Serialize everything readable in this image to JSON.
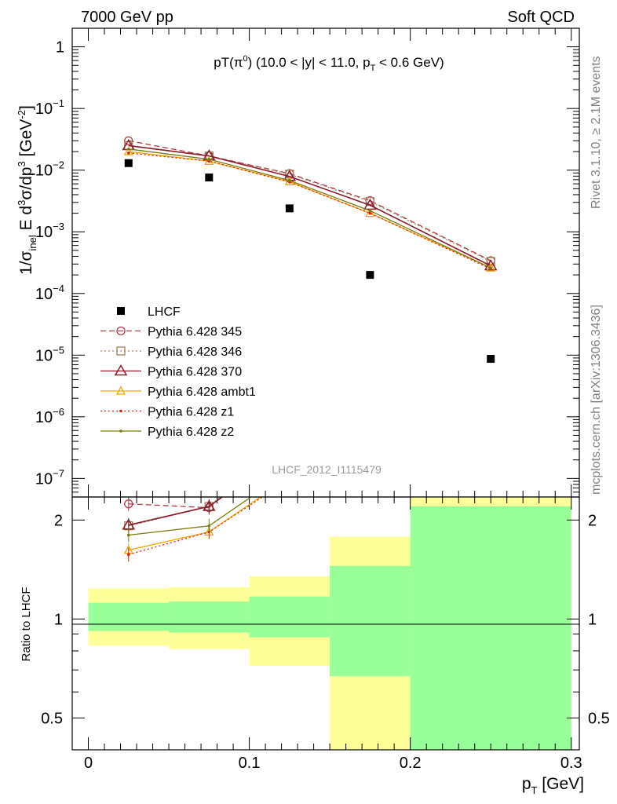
{
  "header": {
    "left": "7000 GeV pp",
    "right": "Soft QCD"
  },
  "side_labels": {
    "rivet": "Rivet 3.1.10, ≥ 2.1M events",
    "source": "mcplots.cern.ch [arXiv:1306.3436]"
  },
  "colors": {
    "data": "#000000",
    "p345": "#b03a48",
    "p346": "#a0845c",
    "p370": "#8b1a2a",
    "ambt1": "#f0a800",
    "z1": "#e02010",
    "z2": "#7a7a10",
    "band_inner": "#99ff99",
    "band_outer": "#ffff99",
    "side_text": "#808080"
  },
  "chart_data": [
    {
      "type": "scatter",
      "title": "pT(π⁰) (10.0 < |y| < 11.0, pT < 0.6 GeV)",
      "title_parts": {
        "main": "pT(π",
        "sup": "0",
        "rest": ") (10.0 < |y| < 11.0, p",
        "sub": "T",
        "tail": " < 0.6 GeV)"
      },
      "ylabel": "1/σinel E d³σ/dp³ [GeV⁻²]",
      "ylabel_parts": {
        "a": "1/σ",
        "a_sub": "inel",
        "b": " E d",
        "b_sup": "3",
        "c": "σ/dp",
        "c_sup": "3",
        "d": " [GeV",
        "d_sup": "-2",
        "e": "]"
      },
      "yscale": "log",
      "ylim": [
        5e-08,
        2
      ],
      "xlim": [
        -0.01,
        0.305
      ],
      "yticks": [
        {
          "v": 1,
          "base": "1",
          "exp": ""
        },
        {
          "v": 0.1,
          "base": "10",
          "exp": "−1"
        },
        {
          "v": 0.01,
          "base": "10",
          "exp": "−2"
        },
        {
          "v": 0.001,
          "base": "10",
          "exp": "−3"
        },
        {
          "v": 0.0001,
          "base": "10",
          "exp": "−4"
        },
        {
          "v": 1e-05,
          "base": "10",
          "exp": "−5"
        },
        {
          "v": 1e-06,
          "base": "10",
          "exp": "−6"
        },
        {
          "v": 1e-07,
          "base": "10",
          "exp": "−7"
        }
      ],
      "watermark": "LHCF_2012_I1115479",
      "legend_position": "bottom-left",
      "x": [
        0.025,
        0.075,
        0.125,
        0.175,
        0.25
      ],
      "series": [
        {
          "name": "LHCF",
          "key": "data",
          "values": [
            0.013,
            0.0076,
            0.0024,
            0.0002,
            8.7e-06
          ]
        },
        {
          "name": "Pythia 6.428 345",
          "key": "p345",
          "values": [
            0.03,
            0.017,
            0.0088,
            0.0032,
            0.00034
          ]
        },
        {
          "name": "Pythia 6.428 346",
          "key": "p346",
          "values": [
            0.025,
            0.017,
            0.0086,
            0.0031,
            0.00033
          ]
        },
        {
          "name": "Pythia 6.428 370",
          "key": "p370",
          "values": [
            0.025,
            0.017,
            0.0079,
            0.0027,
            0.00028
          ]
        },
        {
          "name": "Pythia 6.428 ambt1",
          "key": "ambt1",
          "values": [
            0.02,
            0.014,
            0.0065,
            0.002,
            0.00026
          ]
        },
        {
          "name": "Pythia 6.428 z1",
          "key": "z1",
          "values": [
            0.019,
            0.014,
            0.0064,
            0.002,
            0.00025
          ]
        },
        {
          "name": "Pythia 6.428 z2",
          "key": "z2",
          "values": [
            0.022,
            0.015,
            0.0068,
            0.0022,
            0.00026
          ]
        }
      ]
    },
    {
      "type": "line",
      "ylabel": "Ratio to LHCF",
      "xlabel_parts": {
        "a": "p",
        "a_sub": "T",
        "b": " [GeV]"
      },
      "xlabel": "pT [GeV]",
      "yscale": "log",
      "ylim": [
        0.4,
        2.35
      ],
      "xlim": [
        -0.01,
        0.305
      ],
      "xticks": [
        "0",
        "0.1",
        "0.2",
        "0.3"
      ],
      "xtick_values": [
        0,
        0.1,
        0.2,
        0.3
      ],
      "yticks": [
        "0.5",
        "1",
        "2"
      ],
      "ytick_values": [
        0.5,
        1,
        2
      ],
      "bins": [
        {
          "lo": 0.0,
          "hi": 0.05,
          "inner": [
            0.92,
            1.12
          ],
          "outer": [
            0.83,
            1.24
          ]
        },
        {
          "lo": 0.05,
          "hi": 0.1,
          "inner": [
            0.91,
            1.13
          ],
          "outer": [
            0.81,
            1.25
          ]
        },
        {
          "lo": 0.1,
          "hi": 0.15,
          "inner": [
            0.88,
            1.17
          ],
          "outer": [
            0.72,
            1.35
          ]
        },
        {
          "lo": 0.15,
          "hi": 0.2,
          "inner": [
            0.67,
            1.45
          ],
          "outer": [
            0.4,
            1.78
          ]
        },
        {
          "lo": 0.2,
          "hi": 0.3,
          "inner": [
            0.4,
            2.2
          ],
          "outer": [
            0.4,
            2.35
          ]
        }
      ],
      "x": [
        0.025,
        0.075,
        0.125
      ],
      "series": [
        {
          "key": "p345",
          "values": [
            2.24,
            2.18,
            3.67
          ]
        },
        {
          "key": "p346",
          "values": [
            1.92,
            2.2,
            3.58
          ]
        },
        {
          "key": "p370",
          "values": [
            1.93,
            2.2,
            3.3
          ]
        },
        {
          "key": "ambt1",
          "values": [
            1.62,
            1.84,
            2.7
          ]
        },
        {
          "key": "z1",
          "values": [
            1.57,
            1.84,
            2.66
          ]
        },
        {
          "key": "z2",
          "values": [
            1.8,
            1.92,
            2.83
          ]
        }
      ]
    }
  ]
}
